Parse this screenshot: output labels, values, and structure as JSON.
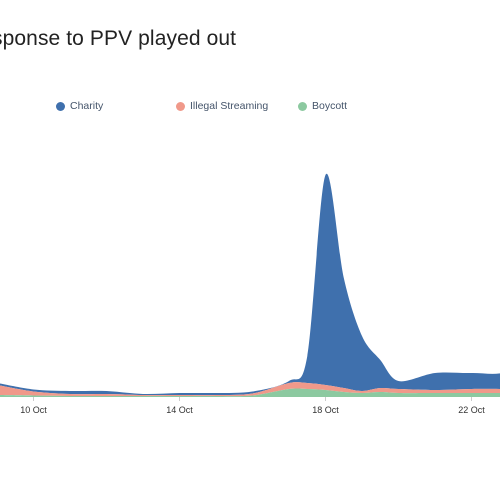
{
  "chart_data": {
    "type": "area",
    "stacked": true,
    "title": "sponse to PPV played out",
    "legend_position": "top",
    "grid": false,
    "x_ticks": [
      "10 Oct",
      "14 Oct",
      "18 Oct",
      "22 Oct"
    ],
    "x": [
      "9 Oct",
      "10 Oct",
      "11 Oct",
      "12 Oct",
      "13 Oct",
      "14 Oct",
      "15 Oct",
      "16 Oct",
      "17 Oct",
      "17.5 Oct",
      "18 Oct",
      "18.5 Oct",
      "19 Oct",
      "19.5 Oct",
      "20 Oct",
      "21 Oct",
      "22 Oct",
      "23 Oct",
      "23.8 Oct"
    ],
    "series": [
      {
        "name": "Boycott",
        "color": "#8cc9a0",
        "values": [
          2,
          1.5,
          1,
          1,
          1,
          1,
          1,
          1.5,
          8,
          8,
          7,
          5,
          4,
          5,
          4,
          4,
          4,
          4,
          4
        ]
      },
      {
        "name": "Illegal Streaming",
        "color": "#f0998a",
        "values": [
          10,
          4,
          2,
          2,
          1,
          1,
          1,
          2,
          6,
          6,
          5,
          4,
          2,
          4,
          4,
          3,
          4,
          4,
          4
        ]
      },
      {
        "name": "Charity",
        "color": "#3f70ad",
        "values": [
          2,
          2,
          3,
          3,
          1,
          2,
          2,
          2,
          2,
          27,
          210,
          110,
          55,
          28,
          8,
          17,
          16,
          18,
          48
        ]
      }
    ],
    "legend": [
      "Charity",
      "Illegal Streaming",
      "Boycott"
    ]
  }
}
